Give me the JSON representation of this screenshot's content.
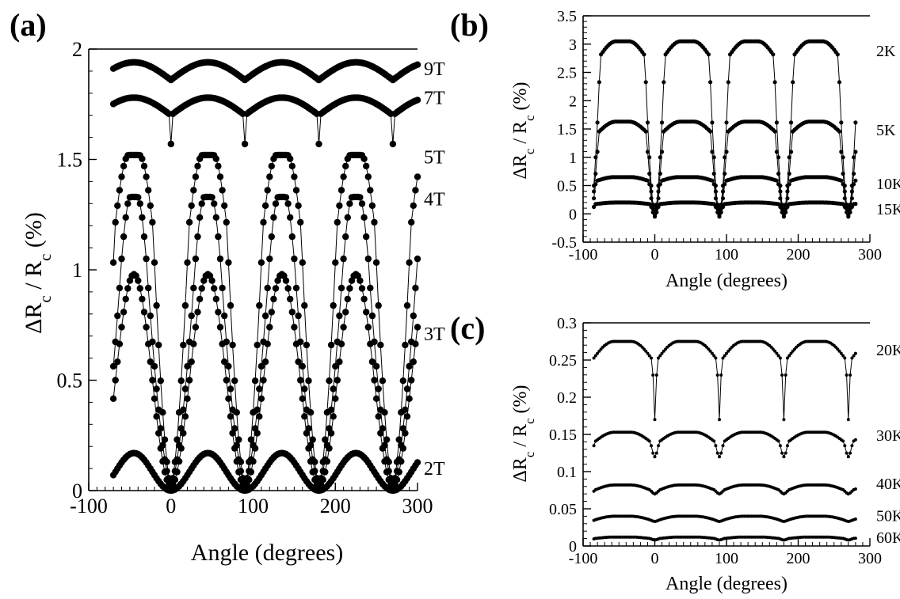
{
  "chart_data": [
    {
      "panel": "(a)",
      "type": "scatter",
      "xlabel": "Angle (degrees)",
      "ylabel": "ΔR_c / R_c (%)",
      "xlim": [
        -100,
        300
      ],
      "ylim": [
        0,
        2
      ],
      "x_ticks": [
        "-100",
        "0",
        "100",
        "200",
        "300"
      ],
      "y_ticks": [
        "0",
        "0.5",
        "1",
        "1.5",
        "2"
      ],
      "x_range_data": [
        -70,
        300
      ],
      "series": [
        {
          "name": "9T",
          "label_y": 1.91,
          "form": "arch",
          "base": 1.86,
          "top": 1.94,
          "dip": 0.0,
          "dip_width": 0
        },
        {
          "name": "7T",
          "label_y": 1.78,
          "form": "arch",
          "base": 1.7,
          "top": 1.78,
          "dip": 1.57,
          "dip_width": 2
        },
        {
          "name": "5T",
          "label_y": 1.51,
          "form": "cusp",
          "base": 1.2,
          "top": 1.52,
          "dip": 0.02,
          "dip_width": 22
        },
        {
          "name": "4T",
          "label_y": 1.32,
          "form": "cusp",
          "base": 1.05,
          "top": 1.33,
          "dip": 0.03,
          "dip_width": 30
        },
        {
          "name": "3T",
          "label_y": 0.71,
          "form": "sin2",
          "amp": 0.96,
          "offset": 0.02
        },
        {
          "name": "2T",
          "label_y": 0.1,
          "form": "sin2",
          "amp": 0.17,
          "offset": 0.0
        }
      ]
    },
    {
      "panel": "(b)",
      "type": "scatter",
      "xlabel": "Angle (degrees)",
      "ylabel": "ΔR_c / R_c (%)",
      "xlim": [
        -100,
        300
      ],
      "ylim": [
        -0.5,
        3.5
      ],
      "x_ticks": [
        "-100",
        "0",
        "100",
        "200",
        "300"
      ],
      "y_ticks": [
        "-0.5",
        "0",
        "0.5",
        "1",
        "1.5",
        "2",
        "2.5",
        "3",
        "3.5"
      ],
      "x_range_data": [
        -85,
        280
      ],
      "series": [
        {
          "name": "2K",
          "label_y": 2.9,
          "form": "cusp",
          "base": 2.8,
          "top": 3.05,
          "dip": -0.05,
          "dip_width": 14
        },
        {
          "name": "5K",
          "label_y": 1.5,
          "form": "cusp",
          "base": 1.45,
          "top": 1.63,
          "dip": 0.05,
          "dip_width": 12
        },
        {
          "name": "10K",
          "label_y": 0.55,
          "form": "cusp",
          "base": 0.58,
          "top": 0.65,
          "dip": 0.0,
          "dip_width": 8
        },
        {
          "name": "15K",
          "label_y": 0.1,
          "form": "cusp",
          "base": 0.17,
          "top": 0.2,
          "dip": -0.02,
          "dip_width": 6
        }
      ]
    },
    {
      "panel": "(c)",
      "type": "scatter",
      "xlabel": "Angle (degrees)",
      "ylabel": "ΔR_c / R_c (%)",
      "xlim": [
        -100,
        300
      ],
      "ylim": [
        0,
        0.3
      ],
      "x_ticks": [
        "-100",
        "0",
        "100",
        "200",
        "300"
      ],
      "y_ticks": [
        "0",
        "0.05",
        "0.1",
        "0.15",
        "0.2",
        "0.25",
        "0.3"
      ],
      "x_range_data": [
        -85,
        280
      ],
      "series": [
        {
          "name": "20K",
          "label_y": 0.265,
          "form": "cusp",
          "base": 0.25,
          "top": 0.275,
          "dip": 0.17,
          "dip_width": 3
        },
        {
          "name": "30K",
          "label_y": 0.15,
          "form": "cusp",
          "base": 0.14,
          "top": 0.153,
          "dip": 0.12,
          "dip_width": 6
        },
        {
          "name": "40K",
          "label_y": 0.085,
          "form": "cusp",
          "base": 0.075,
          "top": 0.082,
          "dip": 0.07,
          "dip_width": 6
        },
        {
          "name": "50K",
          "label_y": 0.042,
          "form": "cusp",
          "base": 0.035,
          "top": 0.04,
          "dip": 0.033,
          "dip_width": 6
        },
        {
          "name": "60K",
          "label_y": 0.013,
          "form": "cusp",
          "base": 0.01,
          "top": 0.012,
          "dip": 0.008,
          "dip_width": 6
        }
      ]
    }
  ]
}
